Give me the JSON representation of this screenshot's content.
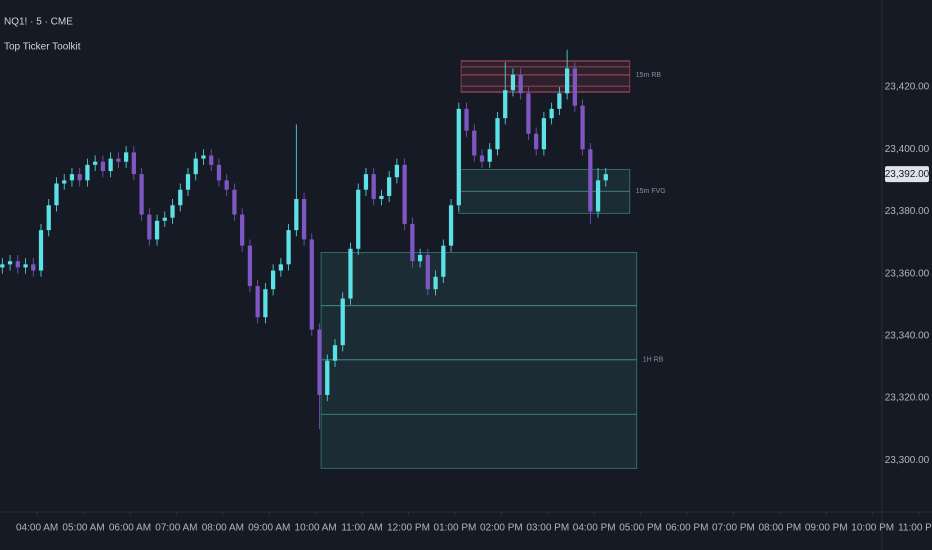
{
  "chart_data": {
    "type": "candlestick",
    "title": "NQ1! · 5 · CME",
    "subtitle": "Top Ticker Toolkit",
    "up_color": "#5ce1e6",
    "down_color": "#7e57c2",
    "x": [
      195,
      205,
      215,
      225,
      235,
      245,
      255,
      265,
      275,
      285,
      295,
      305,
      315,
      325,
      335,
      345,
      355,
      365,
      375,
      385,
      395,
      405,
      415,
      425,
      435,
      445,
      455,
      465,
      475,
      485,
      495,
      505,
      515,
      525,
      535,
      545,
      555,
      565,
      575,
      585,
      595,
      605,
      615,
      625,
      635,
      645,
      655,
      665,
      675,
      685,
      695,
      705,
      715,
      725,
      735,
      745,
      755,
      765,
      775,
      785,
      795,
      805,
      815,
      825,
      835,
      845,
      855,
      865,
      875,
      885,
      895,
      905,
      915,
      925,
      935,
      945,
      955,
      965,
      975
    ],
    "open": [
      23362,
      23363,
      23364,
      23362,
      23363,
      23361,
      23374,
      23382,
      23389,
      23390,
      23392,
      23390,
      23395,
      23396,
      23393,
      23397,
      23396,
      23399,
      23392,
      23379,
      23371,
      23377,
      23378,
      23382,
      23387,
      23392,
      23397,
      23398,
      23395,
      23390,
      23387,
      23379,
      23369,
      23356,
      23346,
      23355,
      23361,
      23363,
      23374,
      23384,
      23371,
      23342,
      23321,
      23332,
      23337,
      23352,
      23368,
      23387,
      23392,
      23384,
      23385,
      23391,
      23395,
      23376,
      23364,
      23366,
      23355,
      23359,
      23369,
      23382,
      23413,
      23406,
      23398,
      23396,
      23400,
      23410,
      23419,
      23424,
      23418,
      23405,
      23400,
      23410,
      23413,
      23418,
      23426,
      23414,
      23400,
      23380,
      23390
    ],
    "high": [
      23365,
      23366,
      23366,
      23365,
      23365,
      23376,
      23384,
      23391,
      23392,
      23394,
      23394,
      23397,
      23398,
      23398,
      23399,
      23399,
      23401,
      23401,
      23394,
      23381,
      23379,
      23380,
      23384,
      23389,
      23394,
      23399,
      23400,
      23400,
      23397,
      23392,
      23389,
      23381,
      23371,
      23358,
      23357,
      23363,
      23365,
      23376,
      23408,
      23386,
      23373,
      23344,
      23334,
      23339,
      23354,
      23370,
      23389,
      23394,
      23394,
      23387,
      23393,
      23397,
      23397,
      23378,
      23368,
      23368,
      23361,
      23371,
      23384,
      23415,
      23415,
      23408,
      23400,
      23402,
      23412,
      23428,
      23426,
      23426,
      23420,
      23407,
      23412,
      23415,
      23420,
      23432,
      23428,
      23416,
      23402,
      23394,
      23394
    ],
    "low": [
      23360,
      23361,
      23360,
      23360,
      23359,
      23359,
      23372,
      23380,
      23387,
      23388,
      23388,
      23388,
      23393,
      23391,
      23391,
      23394,
      23394,
      23390,
      23377,
      23369,
      23369,
      23375,
      23376,
      23380,
      23385,
      23390,
      23395,
      23393,
      23388,
      23385,
      23377,
      23367,
      23354,
      23344,
      23344,
      23353,
      23359,
      23361,
      23372,
      23369,
      23340,
      23310,
      23319,
      23330,
      23335,
      23350,
      23366,
      23385,
      23382,
      23382,
      23383,
      23389,
      23374,
      23362,
      23362,
      23353,
      23353,
      23357,
      23367,
      23380,
      23404,
      23396,
      23394,
      23394,
      23398,
      23408,
      23417,
      23416,
      23403,
      23398,
      23398,
      23408,
      23411,
      23416,
      23412,
      23398,
      23376,
      23378,
      23388
    ],
    "close": [
      23363,
      23364,
      23362,
      23363,
      23361,
      23374,
      23382,
      23389,
      23390,
      23392,
      23390,
      23395,
      23396,
      23393,
      23397,
      23396,
      23399,
      23392,
      23379,
      23371,
      23377,
      23378,
      23382,
      23387,
      23392,
      23397,
      23398,
      23395,
      23390,
      23387,
      23379,
      23369,
      23356,
      23346,
      23355,
      23361,
      23363,
      23374,
      23384,
      23371,
      23342,
      23321,
      23332,
      23337,
      23352,
      23368,
      23387,
      23392,
      23384,
      23385,
      23391,
      23395,
      23376,
      23364,
      23366,
      23355,
      23359,
      23369,
      23382,
      23413,
      23406,
      23398,
      23396,
      23400,
      23410,
      23419,
      23424,
      23418,
      23405,
      23400,
      23410,
      23413,
      23418,
      23426,
      23414,
      23400,
      23380,
      23390,
      23392
    ],
    "last_price": {
      "value": 23392,
      "label": "23,392.00"
    },
    "xlim": [
      192,
      1332
    ],
    "ylim": [
      23284,
      23448
    ],
    "xticks": [
      {
        "value": 240,
        "label": "04:00 AM"
      },
      {
        "value": 300,
        "label": "05:00 AM"
      },
      {
        "value": 360,
        "label": "06:00 AM"
      },
      {
        "value": 420,
        "label": "07:00 AM"
      },
      {
        "value": 480,
        "label": "08:00 AM"
      },
      {
        "value": 540,
        "label": "09:00 AM"
      },
      {
        "value": 600,
        "label": "10:00 AM"
      },
      {
        "value": 660,
        "label": "11:00 AM"
      },
      {
        "value": 720,
        "label": "12:00 PM"
      },
      {
        "value": 780,
        "label": "01:00 PM"
      },
      {
        "value": 840,
        "label": "02:00 PM"
      },
      {
        "value": 900,
        "label": "03:00 PM"
      },
      {
        "value": 960,
        "label": "04:00 PM"
      },
      {
        "value": 1020,
        "label": "05:00 PM"
      },
      {
        "value": 1080,
        "label": "06:00 PM"
      },
      {
        "value": 1140,
        "label": "07:00 PM"
      },
      {
        "value": 1200,
        "label": "08:00 PM"
      },
      {
        "value": 1260,
        "label": "09:00 PM"
      },
      {
        "value": 1320,
        "label": "10:00 PM"
      },
      {
        "value": 1380,
        "label": "11:00 PM"
      }
    ],
    "yticks": [
      {
        "value": 23300,
        "label": "23,300.00"
      },
      {
        "value": 23320,
        "label": "23,320.00"
      },
      {
        "value": 23340,
        "label": "23,340.00"
      },
      {
        "value": 23360,
        "label": "23,360.00"
      },
      {
        "value": 23380,
        "label": "23,380.00"
      },
      {
        "value": 23400,
        "label": "23,400.00"
      },
      {
        "value": 23420,
        "label": "23,420.00"
      }
    ],
    "zones": [
      {
        "label": "15m RB",
        "x0": 788,
        "x1": 1006,
        "top": 23428.4,
        "bottom": 23418.4,
        "levels": [
          23428.4,
          23426.5,
          23423.9,
          23420.3,
          23418.4
        ],
        "color": "#e05a6a"
      },
      {
        "label": "15m FVG",
        "x0": 785,
        "x1": 1006,
        "top": 23393.5,
        "bottom": 23379.4,
        "levels": [
          23386.5
        ],
        "color": "#4db6ac"
      },
      {
        "label": "1H RB",
        "x0": 607,
        "x1": 1015,
        "top": 23366.8,
        "bottom": 23297.4,
        "levels": [
          23349.7,
          23332.3,
          23314.8
        ],
        "color": "#4db6ac"
      }
    ]
  }
}
